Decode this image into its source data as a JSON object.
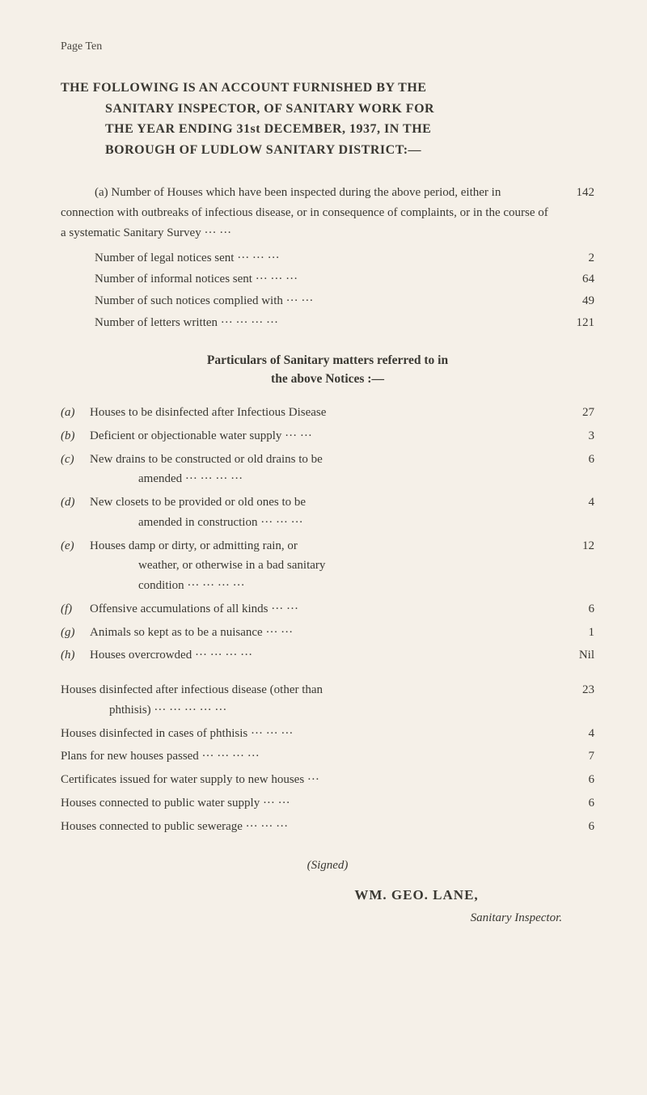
{
  "page_header": "Page Ten",
  "title_line1": "THE FOLLOWING IS AN ACCOUNT FURNISHED BY THE",
  "title_line2": "SANITARY INSPECTOR, OF SANITARY WORK FOR",
  "title_line3": "THE YEAR ENDING 31st DECEMBER, 1937, IN THE",
  "title_line4": "BOROUGH OF LUDLOW SANITARY DISTRICT:—",
  "intro": {
    "para1": "(a) Number of Houses which have been inspected during the above period, either in connection with outbreaks of infectious disease, or in consequence of complaints, or in the course of a systematic Sanitary Survey ···      ···",
    "para1_value": "142",
    "sub_rows": [
      {
        "label": "Number of legal notices sent      ···      ···      ···",
        "value": "2"
      },
      {
        "label": "Number of informal notices sent   ···      ···      ···",
        "value": "64"
      },
      {
        "label": "Number of such notices complied with      ···      ···",
        "value": "49"
      },
      {
        "label": "Number of letters written ···      ···      ···      ···",
        "value": "121"
      }
    ]
  },
  "section_title_line1": "Particulars of Sanitary matters referred to in",
  "section_title_line2": "the above Notices :—",
  "particulars": [
    {
      "marker": "(a)",
      "text": "Houses to be disinfected after Infectious Disease",
      "value": "27"
    },
    {
      "marker": "(b)",
      "text": "Deficient or objectionable water supply ···      ···",
      "value": "3"
    },
    {
      "marker": "(c)",
      "text": "New drains to be constructed or old drains to be",
      "cont": "amended      ···      ···      ···      ···",
      "value": "6"
    },
    {
      "marker": "(d)",
      "text": "New closets to be provided or old ones to be",
      "cont": "amended in construction ···      ···      ···",
      "value": "4"
    },
    {
      "marker": "(e)",
      "text": "Houses damp or dirty, or admitting rain, or",
      "cont": "weather, or otherwise in a bad sanitary",
      "cont2": "condition      ···      ···      ···      ···",
      "value": "12"
    },
    {
      "marker": "(f)",
      "text": "Offensive accumulations of all kinds   ···      ···",
      "value": "6"
    },
    {
      "marker": "(g)",
      "text": "Animals so kept as to be a nuisance   ···      ···",
      "value": "1"
    },
    {
      "marker": "(h)",
      "text": "Houses overcrowded   ···      ···      ···      ···",
      "value": "Nil"
    }
  ],
  "bottom_rows": [
    {
      "text": "Houses disinfected after infectious disease (other than",
      "cont": "phthisis)      ···      ···      ···      ···      ···",
      "value": "23"
    },
    {
      "text": "Houses disinfected in cases of phthisis ···      ···      ···",
      "value": "4"
    },
    {
      "text": "Plans for new houses passed   ···      ···      ···      ···",
      "value": "7"
    },
    {
      "text": "Certificates issued for water supply to new houses      ···",
      "value": "6"
    },
    {
      "text": "Houses connected to public water supply      ···      ···",
      "value": "6"
    },
    {
      "text": "Houses connected to public sewerage   ···      ···      ···",
      "value": "6"
    }
  ],
  "signed": "(Signed)",
  "signature_name": "WM. GEO. LANE,",
  "signature_role": "Sanitary Inspector.",
  "colors": {
    "background": "#f5f0e8",
    "text": "#3a3832"
  },
  "typography": {
    "body_fontsize_pt": 15,
    "title_fontsize_pt": 16,
    "header_fontsize_pt": 14,
    "font_family": "serif"
  }
}
